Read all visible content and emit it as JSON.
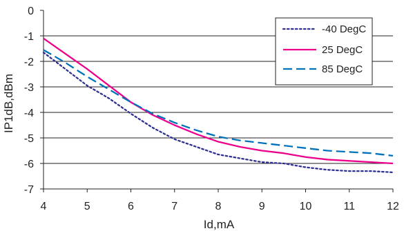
{
  "chart_data": {
    "type": "line",
    "xlabel": "Id,mA",
    "ylabel": "IP1dB,dBm",
    "xlim": [
      4,
      12
    ],
    "ylim": [
      -7,
      0
    ],
    "xticks": [
      4,
      5,
      6,
      7,
      8,
      9,
      10,
      11,
      12
    ],
    "yticks": [
      0,
      -1,
      -2,
      -3,
      -4,
      -5,
      -6,
      -7
    ],
    "grid": {
      "horizontal": true,
      "vertical": false
    },
    "legend_position": "top-right",
    "series": [
      {
        "name": "-40 DegC",
        "color": "#2e3192",
        "dash": "dotted",
        "points": [
          [
            4.0,
            -1.65
          ],
          [
            4.5,
            -2.3
          ],
          [
            5.0,
            -2.95
          ],
          [
            5.5,
            -3.45
          ],
          [
            6.0,
            -4.05
          ],
          [
            6.5,
            -4.6
          ],
          [
            7.0,
            -5.05
          ],
          [
            7.5,
            -5.35
          ],
          [
            8.0,
            -5.65
          ],
          [
            8.5,
            -5.8
          ],
          [
            9.0,
            -5.95
          ],
          [
            9.5,
            -6.0
          ],
          [
            10.0,
            -6.15
          ],
          [
            10.5,
            -6.25
          ],
          [
            11.0,
            -6.3
          ],
          [
            11.5,
            -6.3
          ],
          [
            12.0,
            -6.35
          ]
        ]
      },
      {
        "name": "25 DegC",
        "color": "#ec008c",
        "dash": "solid",
        "points": [
          [
            4.0,
            -1.1
          ],
          [
            4.5,
            -1.7
          ],
          [
            5.0,
            -2.3
          ],
          [
            5.5,
            -2.95
          ],
          [
            6.0,
            -3.6
          ],
          [
            6.5,
            -4.1
          ],
          [
            7.0,
            -4.5
          ],
          [
            7.5,
            -4.85
          ],
          [
            8.0,
            -5.15
          ],
          [
            8.5,
            -5.35
          ],
          [
            9.0,
            -5.5
          ],
          [
            9.5,
            -5.6
          ],
          [
            10.0,
            -5.75
          ],
          [
            10.5,
            -5.85
          ],
          [
            11.0,
            -5.9
          ],
          [
            11.5,
            -5.95
          ],
          [
            12.0,
            -6.0
          ]
        ]
      },
      {
        "name": "85 DegC",
        "color": "#0072bc",
        "dash": "dashed",
        "points": [
          [
            4.0,
            -1.55
          ],
          [
            4.5,
            -2.05
          ],
          [
            5.0,
            -2.6
          ],
          [
            5.5,
            -3.1
          ],
          [
            6.0,
            -3.6
          ],
          [
            6.5,
            -4.05
          ],
          [
            7.0,
            -4.4
          ],
          [
            7.5,
            -4.7
          ],
          [
            8.0,
            -4.95
          ],
          [
            8.5,
            -5.1
          ],
          [
            9.0,
            -5.2
          ],
          [
            9.5,
            -5.3
          ],
          [
            10.0,
            -5.4
          ],
          [
            10.5,
            -5.5
          ],
          [
            11.0,
            -5.55
          ],
          [
            11.5,
            -5.6
          ],
          [
            12.0,
            -5.7
          ]
        ]
      }
    ]
  }
}
